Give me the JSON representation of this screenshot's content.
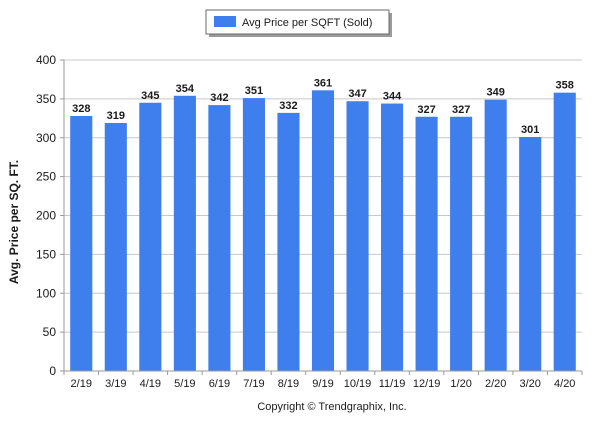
{
  "chart_data": {
    "type": "bar",
    "categories": [
      "2/19",
      "3/19",
      "4/19",
      "5/19",
      "6/19",
      "7/19",
      "8/19",
      "9/19",
      "10/19",
      "11/19",
      "12/19",
      "1/20",
      "2/20",
      "3/20",
      "4/20"
    ],
    "series": [
      {
        "name": "Avg Price per SQFT (Sold)",
        "values": [
          328,
          319,
          345,
          354,
          342,
          351,
          332,
          361,
          347,
          344,
          327,
          327,
          349,
          301,
          358
        ],
        "color": "#3f7fed"
      }
    ],
    "xlabel": "",
    "ylabel": "Avg. Price per SQ. FT.",
    "ylim": [
      0,
      400
    ],
    "yticks": [
      0,
      50,
      100,
      150,
      200,
      250,
      300,
      350,
      400
    ],
    "grid": true,
    "legend_position": "top-center",
    "data_labels": true
  },
  "copyright": "Copyright © Trendgraphix, Inc.",
  "colors": {
    "bar": "#3f7fed",
    "grid": "#c8c8c8",
    "axis": "#9a9a9a",
    "text": "#1a1a1a"
  }
}
